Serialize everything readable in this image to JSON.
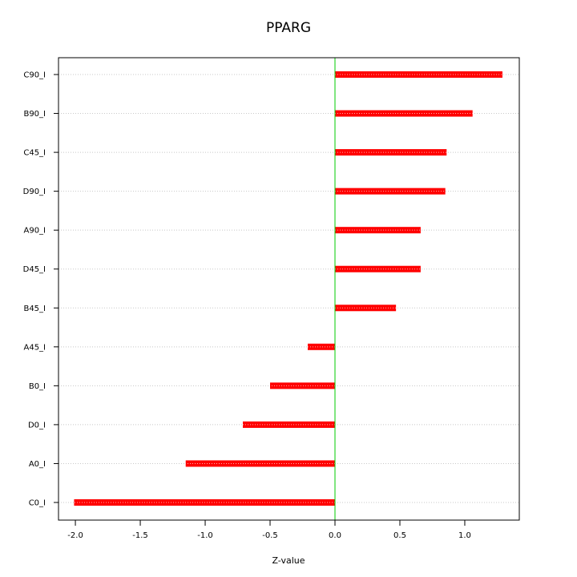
{
  "chart_data": {
    "type": "bar",
    "orientation": "horizontal",
    "title": "PPARG",
    "xlabel": "Z-value",
    "ylabel": "",
    "xlim": [
      -2.13,
      1.42
    ],
    "x_ticks": [
      "-2.0",
      "-1.5",
      "-1.0",
      "-0.5",
      "0.0",
      "0.5",
      "1.0"
    ],
    "x_tick_values": [
      -2.0,
      -1.5,
      -1.0,
      -0.5,
      0.0,
      0.5,
      1.0
    ],
    "categories": [
      "C0_I",
      "A0_I",
      "D0_I",
      "B0_I",
      "A45_I",
      "B45_I",
      "D45_I",
      "A90_I",
      "D90_I",
      "C45_I",
      "B90_I",
      "C90_I"
    ],
    "values": [
      -2.01,
      -1.15,
      -0.71,
      -0.5,
      -0.21,
      0.47,
      0.66,
      0.66,
      0.85,
      0.86,
      1.06,
      1.29
    ],
    "bar_color": "#ff0000",
    "zero_line_color": "#00cc00",
    "grid": "horizontal dotted at each category"
  }
}
